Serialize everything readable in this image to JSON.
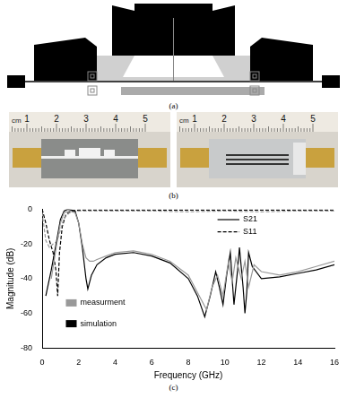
{
  "figure": {
    "panel_labels": [
      "(a)",
      "(b)",
      "(c)"
    ],
    "ruler": {
      "unit": "cm",
      "marks": [
        1,
        2,
        3,
        4,
        5
      ]
    }
  },
  "chart_data": {
    "type": "line",
    "x_label": "Frequency (GHz)",
    "y_label": "Magnitude (dB)",
    "xlim": [
      0,
      16
    ],
    "xticks": [
      0,
      2,
      4,
      6,
      8,
      10,
      12,
      14,
      16
    ],
    "ylim": [
      -80,
      0
    ],
    "yticks": [
      -80,
      -60,
      -40,
      -20,
      0
    ],
    "grid": false,
    "line_legend": [
      {
        "label": "S21",
        "line_style": "solid"
      },
      {
        "label": "S11",
        "line_style": "dashed"
      }
    ],
    "color_legend": [
      {
        "label": "measurment",
        "color": "#999999"
      },
      {
        "label": "simulation",
        "color": "#000000"
      }
    ],
    "series": [
      {
        "color": "#999999",
        "line_style": "solid",
        "x": [
          0.5,
          0.8,
          1.0,
          1.2,
          1.5,
          1.8,
          2.0,
          2.2,
          2.4,
          2.6,
          2.8,
          3.0,
          3.5,
          4.0,
          5.0,
          6.0,
          7.0,
          8.0,
          8.5,
          9.0,
          9.3,
          9.6,
          9.9,
          10.2,
          10.4,
          10.6,
          10.9,
          11.1,
          11.3,
          11.6,
          12,
          13,
          14,
          15,
          16
        ],
        "values": [
          -40,
          -20,
          -8,
          -2,
          -1,
          -2,
          -8,
          -20,
          -28,
          -30,
          -30,
          -29,
          -27,
          -25,
          -24,
          -26,
          -30,
          -38,
          -48,
          -58,
          -45,
          -38,
          -50,
          -30,
          -42,
          -28,
          -40,
          -30,
          -45,
          -32,
          -36,
          -38,
          -36,
          -33,
          -30
        ]
      },
      {
        "color": "#000000",
        "line_style": "solid",
        "x": [
          0.2,
          0.5,
          0.8,
          1.0,
          1.2,
          1.4,
          1.8,
          2.0,
          2.2,
          2.4,
          2.5,
          2.7,
          3.0,
          3.5,
          4.0,
          5.0,
          6.0,
          7.0,
          8.0,
          8.5,
          8.9,
          9.2,
          9.5,
          9.7,
          9.9,
          10.1,
          10.3,
          10.4,
          10.5,
          10.7,
          10.8,
          11.0,
          11.1,
          11.2,
          11.3,
          11.5,
          12,
          13,
          14,
          15,
          16
        ],
        "values": [
          -50,
          -35,
          -18,
          -6,
          -1,
          0,
          -1,
          -8,
          -22,
          -40,
          -46,
          -38,
          -32,
          -28,
          -26,
          -25,
          -27,
          -31,
          -40,
          -50,
          -62,
          -50,
          -36,
          -45,
          -55,
          -38,
          -25,
          -40,
          -55,
          -35,
          -22,
          -45,
          -60,
          -48,
          -25,
          -33,
          -40,
          -39,
          -37,
          -35,
          -32
        ]
      },
      {
        "color": "#999999",
        "line_style": "dashed",
        "x": [
          0,
          0.2,
          0.4,
          0.6,
          0.8,
          1.0,
          1.2,
          1.5,
          2.0,
          4,
          6,
          8,
          10,
          12,
          14,
          16
        ],
        "values": [
          -2,
          -18,
          -22,
          -20,
          -19,
          -12,
          -5,
          -2,
          -1,
          -1,
          -1,
          -1.5,
          -1,
          -1.5,
          -1,
          -1
        ]
      },
      {
        "color": "#000000",
        "line_style": "dashed",
        "x": [
          0,
          0.2,
          0.4,
          0.6,
          0.75,
          0.85,
          0.95,
          1.1,
          1.3,
          1.6,
          2.0,
          4,
          6,
          8,
          10,
          12,
          14,
          16
        ],
        "values": [
          0,
          -8,
          -18,
          -25,
          -35,
          -50,
          -25,
          -10,
          -3,
          -1,
          -0.5,
          -0.5,
          -0.5,
          -0.5,
          -0.5,
          -0.5,
          -0.5,
          -0.5
        ]
      }
    ]
  }
}
